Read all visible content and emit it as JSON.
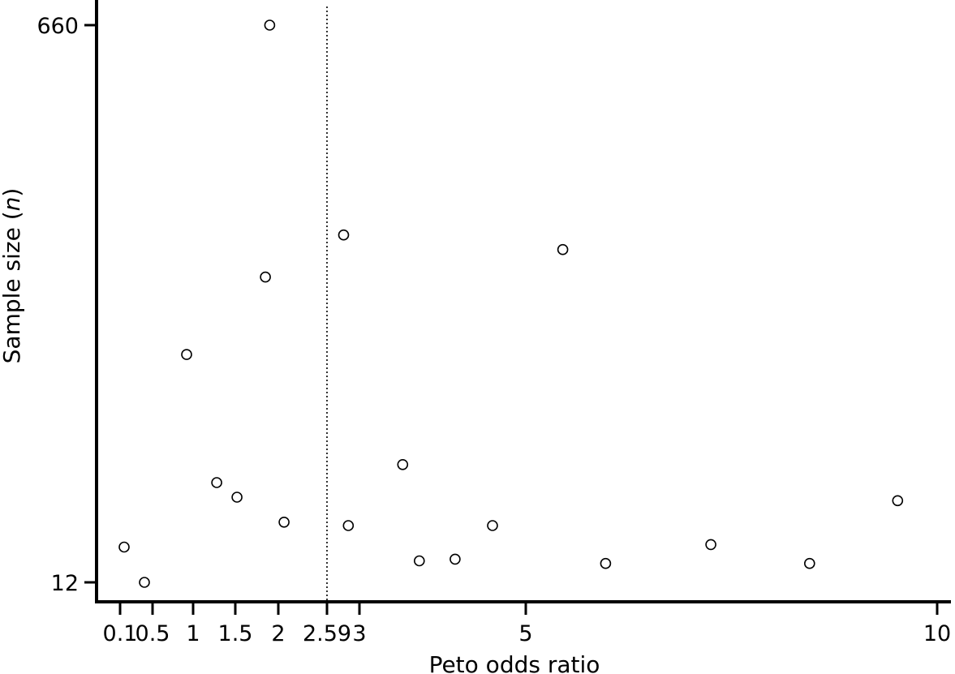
{
  "chart_data": {
    "type": "scatter",
    "title": "",
    "xlabel": "Peto odds ratio",
    "ylabel": "Sample size (n)",
    "ylabel_italic": "n",
    "xlim": [
      0.1,
      10
    ],
    "ylim": [
      12,
      660
    ],
    "xticks": [
      {
        "value": 0.1,
        "label": "0.1"
      },
      {
        "value": 0.5,
        "label": "0.5"
      },
      {
        "value": 1,
        "label": "1"
      },
      {
        "value": 1.5,
        "label": "1.5"
      },
      {
        "value": 2,
        "label": "2"
      },
      {
        "value": 2.59,
        "label": "2.59"
      },
      {
        "value": 3,
        "label": "3"
      },
      {
        "value": 5,
        "label": "5"
      },
      {
        "value": 10,
        "label": "10"
      }
    ],
    "yticks": [
      {
        "value": 12,
        "label": "12"
      },
      {
        "value": 660,
        "label": "660"
      }
    ],
    "reference_line": {
      "x": 2.59,
      "style": "dotted"
    },
    "grid": false,
    "points": [
      {
        "x": 0.15,
        "y": 53
      },
      {
        "x": 0.4,
        "y": 12
      },
      {
        "x": 0.92,
        "y": 277
      },
      {
        "x": 1.28,
        "y": 128
      },
      {
        "x": 1.52,
        "y": 111
      },
      {
        "x": 1.85,
        "y": 367
      },
      {
        "x": 1.9,
        "y": 660
      },
      {
        "x": 2.07,
        "y": 82
      },
      {
        "x": 2.8,
        "y": 416
      },
      {
        "x": 2.86,
        "y": 78
      },
      {
        "x": 3.52,
        "y": 149
      },
      {
        "x": 3.72,
        "y": 37
      },
      {
        "x": 4.15,
        "y": 39
      },
      {
        "x": 4.6,
        "y": 78
      },
      {
        "x": 5.45,
        "y": 399
      },
      {
        "x": 5.97,
        "y": 34
      },
      {
        "x": 7.25,
        "y": 56
      },
      {
        "x": 8.45,
        "y": 34
      },
      {
        "x": 9.52,
        "y": 107
      }
    ]
  }
}
